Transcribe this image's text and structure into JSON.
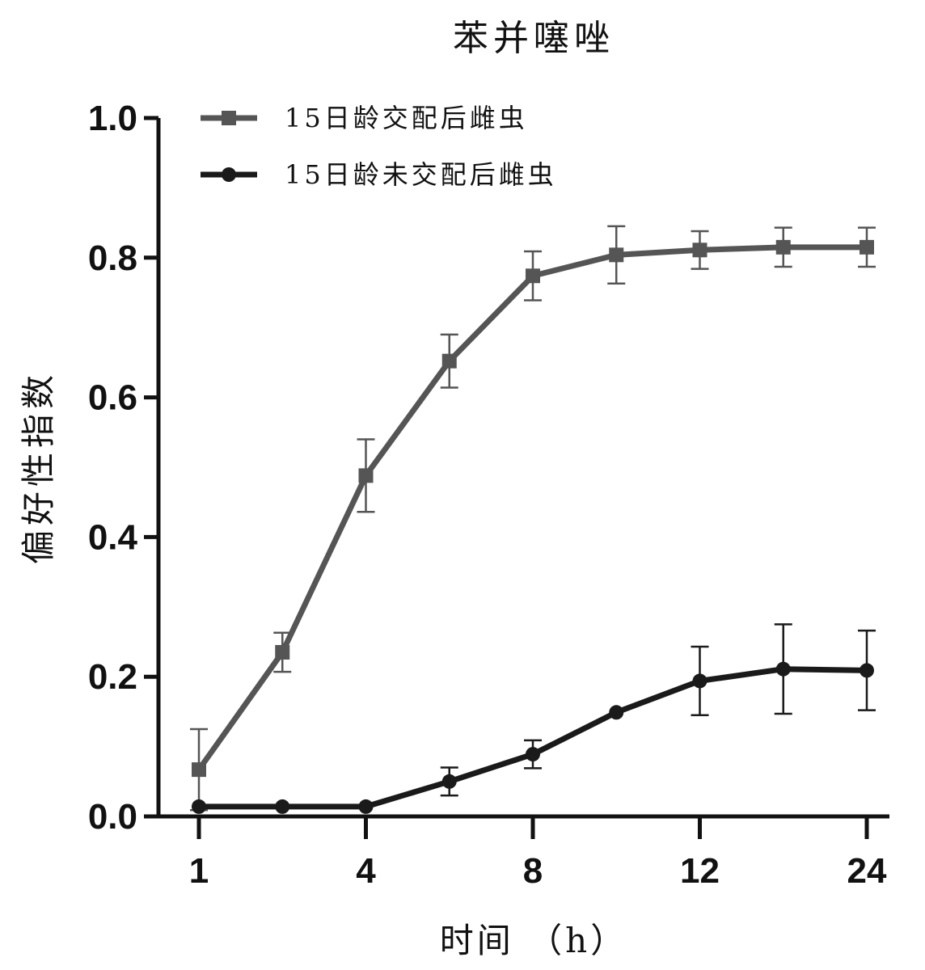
{
  "chart_data": {
    "type": "line",
    "title": "苯并噻唑",
    "xlabel": "时间 （h）",
    "ylabel": "偏好性指数",
    "ylim": [
      0,
      1.0
    ],
    "yticks": [
      0.0,
      0.2,
      0.4,
      0.6,
      0.8,
      1.0
    ],
    "ytick_labels": [
      "0.0",
      "0.2",
      "0.4",
      "0.6",
      "0.8",
      "1.0"
    ],
    "x_index": [
      0,
      1,
      2,
      3,
      4,
      5,
      6,
      7,
      8
    ],
    "xtick_index": [
      0,
      2,
      4,
      6,
      8
    ],
    "xtick_labels": [
      "1",
      "4",
      "8",
      "12",
      "24"
    ],
    "legend_position": "top-left",
    "grid": false,
    "series": [
      {
        "name": "15日龄交配后雌虫",
        "marker": "square",
        "color": "#555555",
        "values": [
          0.067,
          0.235,
          0.488,
          0.652,
          0.774,
          0.804,
          0.811,
          0.815,
          0.815
        ],
        "errors": [
          0.058,
          0.028,
          0.052,
          0.038,
          0.035,
          0.041,
          0.027,
          0.028,
          0.028
        ]
      },
      {
        "name": "15日龄未交配后雌虫",
        "marker": "circle",
        "color": "#1a1a1a",
        "values": [
          0.014,
          0.014,
          0.014,
          0.05,
          0.089,
          0.149,
          0.194,
          0.211,
          0.209
        ],
        "errors": [
          0,
          0,
          0,
          0.02,
          0.02,
          0,
          0.049,
          0.064,
          0.057
        ]
      }
    ]
  }
}
